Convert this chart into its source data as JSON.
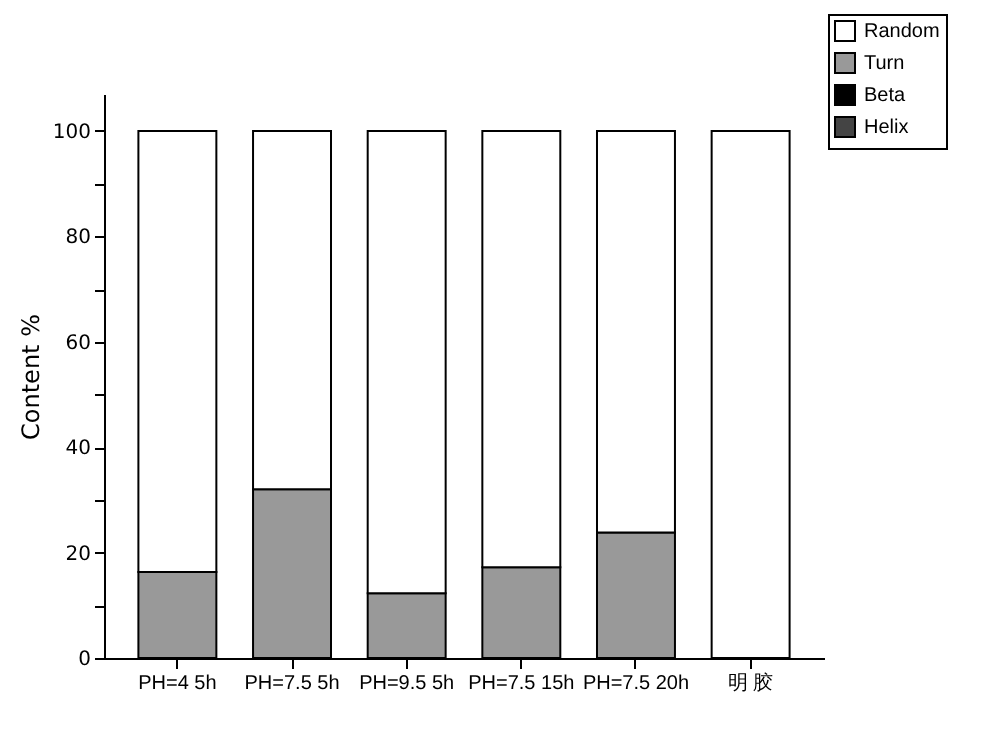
{
  "chart_data": {
    "type": "bar",
    "stacked": true,
    "ylabel": "Content %",
    "categories": [
      "PH=4 5h",
      "PH=7.5 5h",
      "PH=9.5 5h",
      "PH=7.5 15h",
      "PH=7.5 20h",
      "明 胶"
    ],
    "series": [
      {
        "name": "Random",
        "color": "#ffffff",
        "values": [
          83.7,
          68.0,
          87.7,
          82.8,
          76.2,
          100
        ]
      },
      {
        "name": "Turn",
        "color": "#999999",
        "values": [
          16.3,
          32.0,
          12.3,
          17.2,
          23.8,
          0
        ]
      },
      {
        "name": "Beta",
        "color": "#000000",
        "values": [
          null,
          null,
          null,
          null,
          null,
          null
        ]
      },
      {
        "name": "Helix",
        "color": "#444444",
        "values": [
          null,
          null,
          null,
          null,
          null,
          null
        ]
      }
    ],
    "ylim": [
      0,
      107
    ],
    "yticks": [
      0,
      {
        "value": 10,
        "label": null
      },
      20,
      {
        "value": 30,
        "label": null
      },
      40,
      {
        "value": 50,
        "label": null
      },
      60,
      {
        "value": 70,
        "label": null
      },
      80,
      {
        "value": 90,
        "label": null
      },
      100
    ],
    "grid": false,
    "legend": "top right"
  }
}
